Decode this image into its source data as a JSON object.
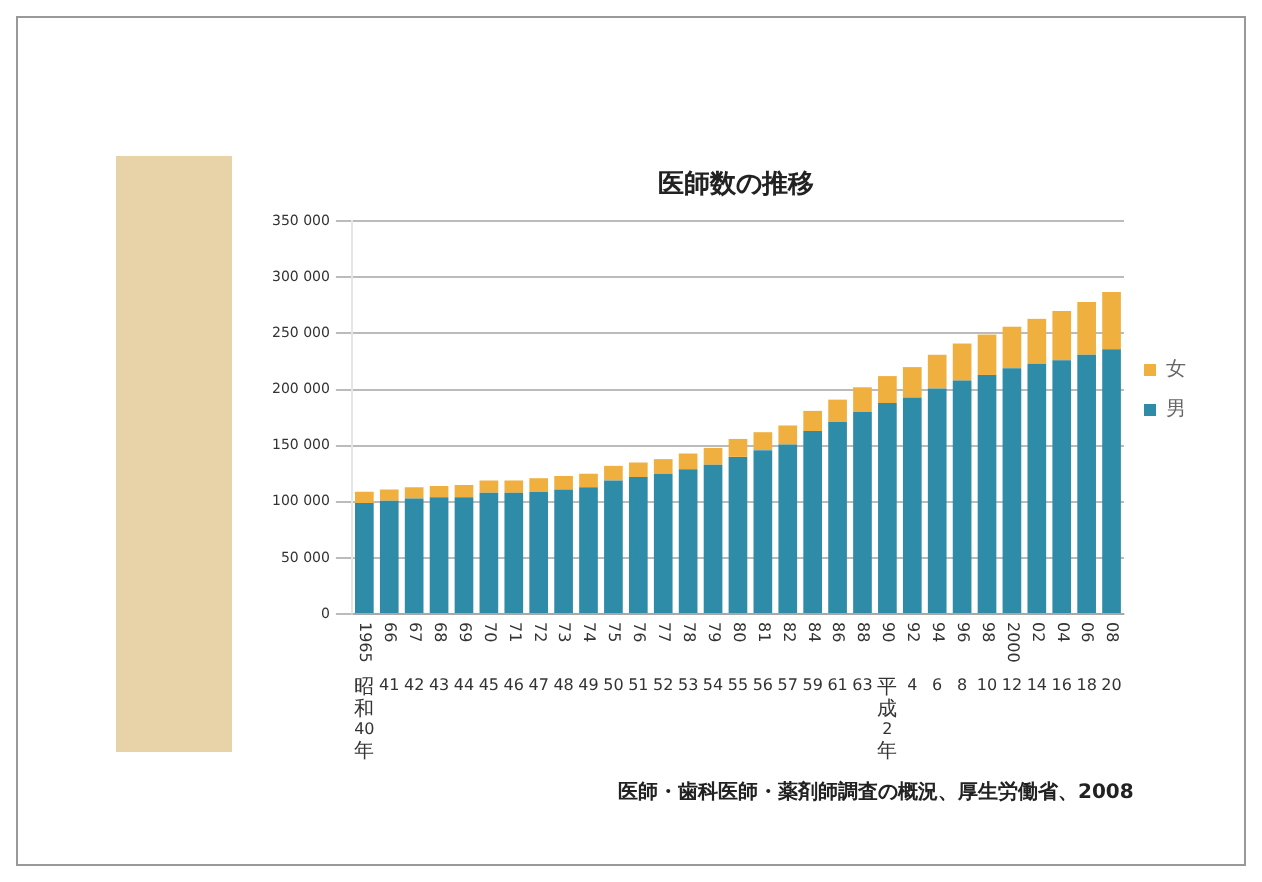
{
  "chart_data": {
    "type": "bar",
    "title": "医師数の推移",
    "stacked": true,
    "legend": "right",
    "grid": "y",
    "categories": [
      "1965\n昭和40年",
      "66\n41",
      "67\n42",
      "68\n43",
      "69\n44",
      "70\n45",
      "71\n46",
      "72\n47",
      "73\n48",
      "74\n49",
      "75\n50",
      "76\n51",
      "77\n52",
      "78\n53",
      "79\n54",
      "80\n55",
      "81\n56",
      "82\n57",
      "84\n59",
      "86\n61",
      "88\n63",
      "90\n平成2年",
      "92\n4",
      "94\n6",
      "96\n8",
      "98\n10",
      "2000\n12",
      "02\n14",
      "04\n16",
      "06\n18",
      "08\n20"
    ],
    "ylim": [
      0,
      350000
    ],
    "yticks": [
      0,
      {
        "value": 50000,
        "label": "50 000"
      },
      {
        "value": 100000,
        "label": "100 000"
      },
      {
        "value": 150000,
        "label": "150 000"
      },
      {
        "value": 200000,
        "label": "200 000"
      },
      {
        "value": 250000,
        "label": "250 000"
      },
      {
        "value": 300000,
        "label": "300 000"
      },
      {
        "value": 350000,
        "label": "350 000"
      }
    ],
    "series": [
      {
        "name": "男",
        "color": "#2e8ca8",
        "values": [
          99000,
          101000,
          103000,
          104000,
          104000,
          108000,
          108000,
          109000,
          111000,
          113000,
          119000,
          122000,
          125000,
          129000,
          133000,
          140000,
          146000,
          151000,
          163000,
          171000,
          180000,
          188000,
          193000,
          201000,
          208000,
          213000,
          219000,
          223000,
          226000,
          231000,
          236000
        ]
      },
      {
        "name": "女",
        "color": "#f0b040",
        "values": [
          10000,
          10000,
          10000,
          10000,
          11000,
          11000,
          11000,
          12000,
          12000,
          12000,
          13000,
          13000,
          13000,
          14000,
          15000,
          16000,
          16000,
          17000,
          18000,
          20000,
          22000,
          24000,
          27000,
          30000,
          33000,
          36000,
          37000,
          40000,
          44000,
          47000,
          51000
        ]
      }
    ],
    "annotations": [
      "医師・歯科医師・薬剤師調査の概況、厚生労働省、2008"
    ]
  }
}
